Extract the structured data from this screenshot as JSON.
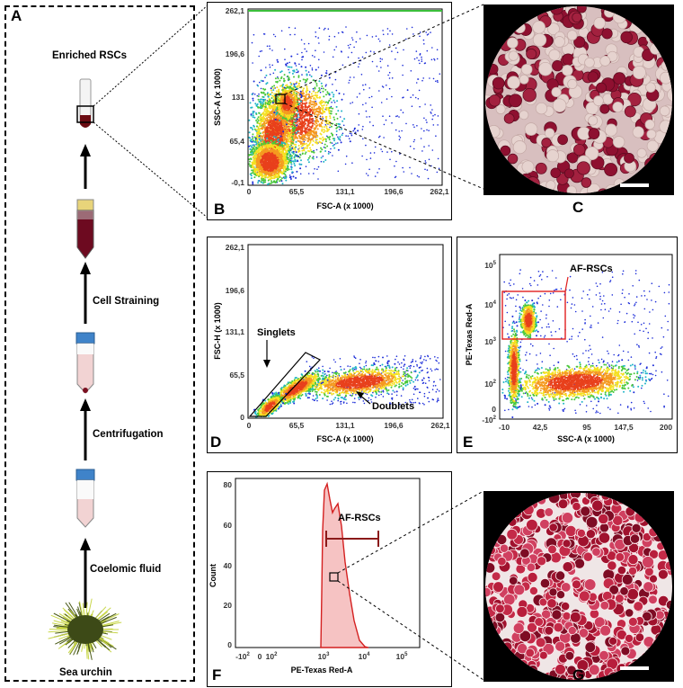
{
  "panel_a": {
    "label": "A",
    "steps": {
      "enriched": "Enriched RSCs",
      "straining": "Cell Straining",
      "centrifugation": "Centrifugation",
      "coelomic": "Coelomic fluid",
      "urchin": "Sea urchin"
    }
  },
  "panel_b": {
    "label": "B",
    "xlabel": "FSC-A (x 1000)",
    "ylabel": "SSC-A (x 1000)",
    "xticks": [
      "0",
      "65,5",
      "131,1",
      "196,6",
      "262,1"
    ],
    "yticks": [
      "-0,1",
      "65,4",
      "131",
      "196,6",
      "262,1"
    ]
  },
  "panel_c": {
    "label": "C"
  },
  "panel_d": {
    "label": "D",
    "xlabel": "FSC-A (x 1000)",
    "ylabel": "FSC-H (x 1000)",
    "xticks": [
      "0",
      "65,5",
      "131,1",
      "196,6",
      "262,1"
    ],
    "yticks": [
      "0",
      "65,5",
      "131,1",
      "196,6",
      "262,1"
    ],
    "singlets": "Singlets",
    "doublets": "Doublets"
  },
  "panel_e": {
    "label": "E",
    "xlabel": "SSC-A (x 1000)",
    "ylabel": "PE-Texas Red-A",
    "xticks": [
      "-10",
      "42,5",
      "95",
      "147,5",
      "200"
    ],
    "gate": "AF-RSCs"
  },
  "panel_f": {
    "label": "F",
    "xlabel": "PE-Texas Red-A",
    "ylabel": "Count",
    "yticks": [
      "0",
      "20",
      "40",
      "60",
      "80"
    ],
    "gate": "AF-RSCs"
  },
  "panel_g": {
    "label": "G"
  },
  "colors": {
    "density_high": "#e8401c",
    "density_mid": "#f5e021",
    "density_low": "#1a2bd8",
    "gate_red": "#e02020",
    "histogram": "#d42020"
  }
}
